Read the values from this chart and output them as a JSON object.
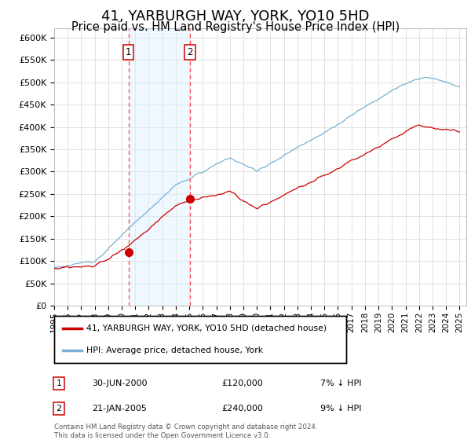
{
  "title": "41, YARBURGH WAY, YORK, YO10 5HD",
  "subtitle": "Price paid vs. HM Land Registry's House Price Index (HPI)",
  "ylim": [
    0,
    620000
  ],
  "yticks": [
    0,
    50000,
    100000,
    150000,
    200000,
    250000,
    300000,
    350000,
    400000,
    450000,
    500000,
    550000,
    600000
  ],
  "ytick_labels": [
    "£0",
    "£50K",
    "£100K",
    "£150K",
    "£200K",
    "£250K",
    "£300K",
    "£350K",
    "£400K",
    "£450K",
    "£500K",
    "£550K",
    "£600K"
  ],
  "xlim_start": 1995.0,
  "xlim_end": 2025.5,
  "sale1_x": 2000.5,
  "sale1_y": 120000,
  "sale1_label": "1",
  "sale1_date": "30-JUN-2000",
  "sale1_price": "£120,000",
  "sale1_hpi": "7% ↓ HPI",
  "sale2_x": 2005.05,
  "sale2_y": 240000,
  "sale2_label": "2",
  "sale2_date": "21-JAN-2005",
  "sale2_price": "£240,000",
  "sale2_hpi": "9% ↓ HPI",
  "shade_color": "#ddeeff",
  "shade_alpha": 0.45,
  "vline_color": "#ff4444",
  "vline_style": "--",
  "marker_color": "#cc0000",
  "hpi_line_color": "#7ab0d4",
  "price_line_color": "#cc0000",
  "legend_label_red": "41, YARBURGH WAY, YORK, YO10 5HD (detached house)",
  "legend_label_blue": "HPI: Average price, detached house, York",
  "footnote": "Contains HM Land Registry data © Crown copyright and database right 2024.\nThis data is licensed under the Open Government Licence v3.0.",
  "background_color": "#ffffff",
  "grid_color": "#dddddd",
  "title_fontsize": 13,
  "subtitle_fontsize": 10.5
}
